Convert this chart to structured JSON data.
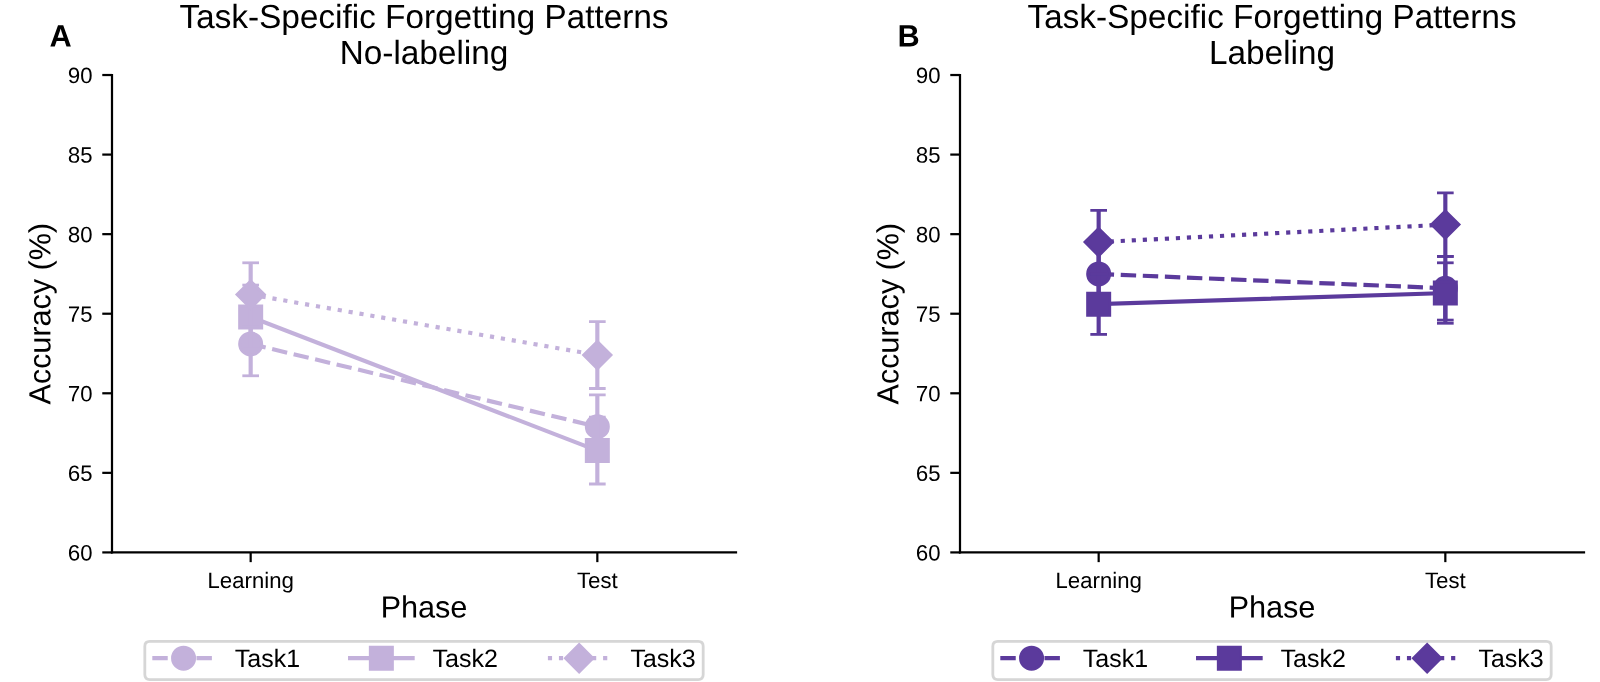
{
  "chart_data": [
    {
      "type": "line",
      "title": "Task-Specific Forgetting Patterns\nNo-labeling",
      "xlabel": "Phase",
      "ylabel": "Accuracy (%)",
      "annotations": [
        "A"
      ],
      "categories": [
        "Learning",
        "Test"
      ],
      "ylim": [
        60,
        90
      ],
      "yticks": [
        60,
        65,
        70,
        75,
        80,
        85,
        90
      ],
      "grid": false,
      "legend": "bottom",
      "series": [
        {
          "name": "Task1",
          "color": "#c3b1db",
          "values": [
            73.1,
            67.9
          ],
          "errors": [
            2.0,
            2.0
          ],
          "marker": "circle",
          "line_style": "dashed"
        },
        {
          "name": "Task2",
          "color": "#c3b1db",
          "values": [
            74.8,
            66.4
          ],
          "errors": [
            2.0,
            2.1
          ],
          "marker": "square",
          "line_style": "solid"
        },
        {
          "name": "Task3",
          "color": "#c3b1db",
          "values": [
            76.2,
            72.4
          ],
          "errors": [
            2.0,
            2.1
          ],
          "marker": "diamond",
          "line_style": "dotted"
        }
      ]
    },
    {
      "type": "line",
      "title": "Task-Specific Forgetting Patterns\nLabeling",
      "xlabel": "Phase",
      "ylabel": "Accuracy (%)",
      "annotations": [
        "B"
      ],
      "categories": [
        "Learning",
        "Test"
      ],
      "ylim": [
        60,
        90
      ],
      "yticks": [
        60,
        65,
        70,
        75,
        80,
        85,
        90
      ],
      "grid": false,
      "legend": "bottom",
      "series": [
        {
          "name": "Task1",
          "color": "#5b3a9c",
          "values": [
            77.5,
            76.6
          ],
          "errors": [
            1.9,
            2.0
          ],
          "marker": "circle",
          "line_style": "dashed"
        },
        {
          "name": "Task2",
          "color": "#5b3a9c",
          "values": [
            75.6,
            76.3
          ],
          "errors": [
            1.9,
            1.9
          ],
          "marker": "square",
          "line_style": "solid"
        },
        {
          "name": "Task3",
          "color": "#5b3a9c",
          "values": [
            79.5,
            80.6
          ],
          "errors": [
            2.0,
            2.0
          ],
          "marker": "diamond",
          "line_style": "dotted"
        }
      ]
    }
  ]
}
